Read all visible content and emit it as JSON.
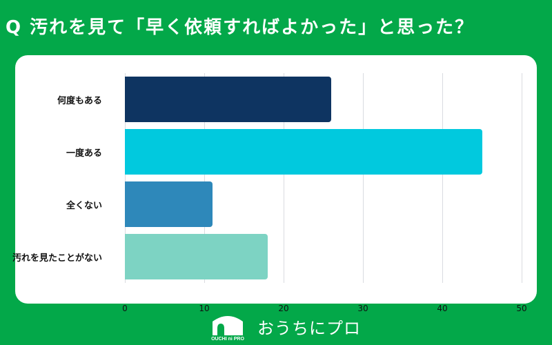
{
  "header": {
    "title": "Q 汚れを見て「早く依頼すればよかった」と思った？"
  },
  "colors": {
    "background": "#03A849",
    "card": "#FFFFFF",
    "grid": "#D9DBE0"
  },
  "chart_data": {
    "type": "bar",
    "orientation": "horizontal",
    "title": "Q 汚れを見て「早く依頼すればよかった」と思った？",
    "xlabel": "",
    "ylabel": "",
    "categories": [
      "何度もある",
      "一度ある",
      "全くない",
      "汚れを見たことがない"
    ],
    "values": [
      26,
      45,
      11,
      18
    ],
    "bar_colors": [
      "#0E3461",
      "#01C9DE",
      "#2E88BA",
      "#7DD3C3"
    ],
    "xlim": [
      0,
      50
    ],
    "xticks": [
      "0",
      "10",
      "20",
      "30",
      "40",
      "50"
    ],
    "grid": true,
    "legend": null
  },
  "footer": {
    "logo_caption": "OUCHI ni PRO",
    "brand": "おうちにプロ"
  }
}
